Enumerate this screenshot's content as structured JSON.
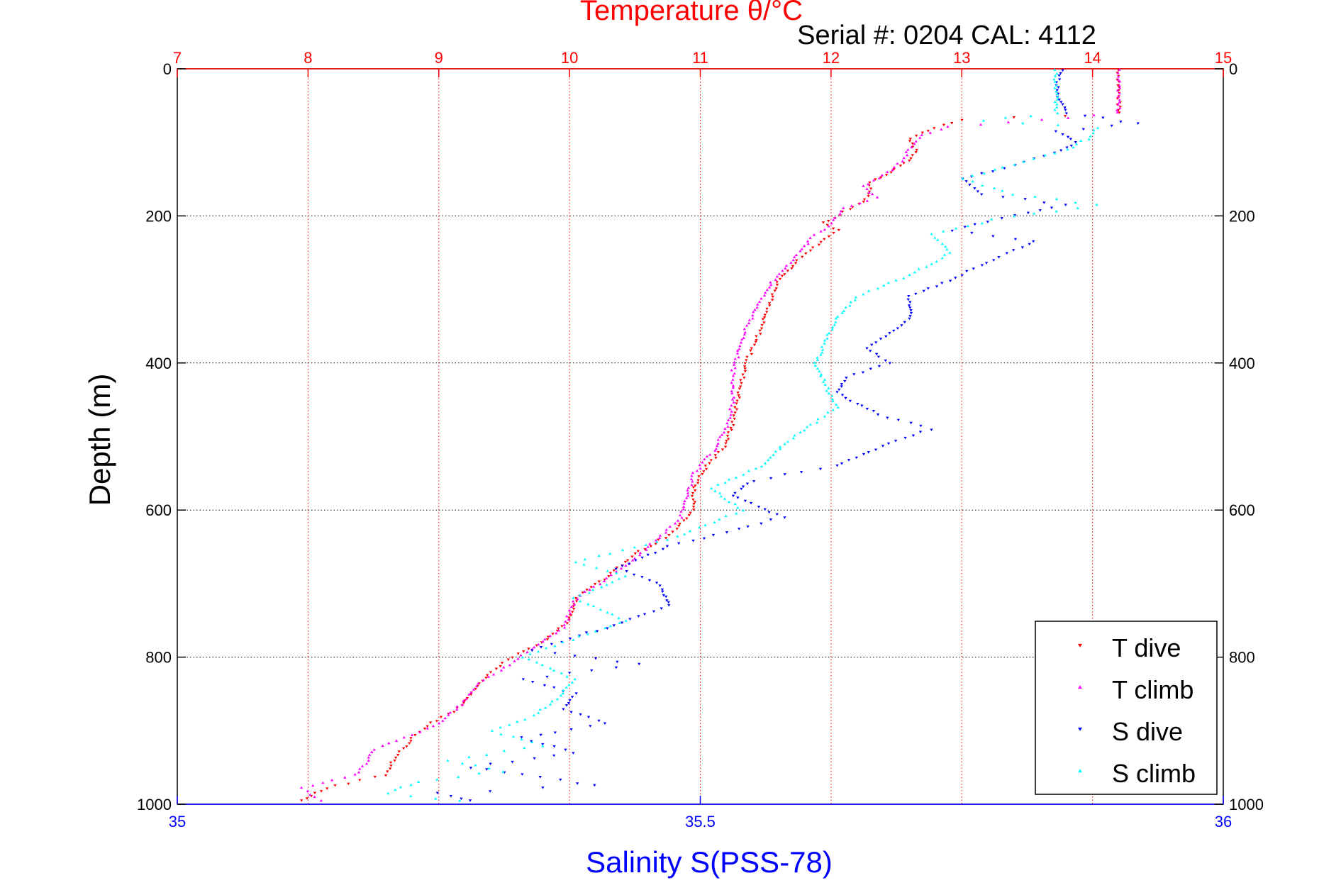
{
  "chart_data": {
    "type": "scatter",
    "title": "Temperature θ/°C",
    "subtitle": "Serial #: 0204  CAL: 4112",
    "ylabel": "Depth (m)",
    "xlabel": "Salinity S(PSS-78)",
    "y_axis": {
      "label": "Depth (m)",
      "range": [
        0,
        1000
      ],
      "reversed": true,
      "ticks": [
        "0",
        "200",
        "400",
        "600",
        "800",
        "1000"
      ],
      "tick_values": [
        0,
        200,
        400,
        600,
        800,
        1000
      ]
    },
    "x_top_axis": {
      "label": "Temperature θ/°C",
      "range": [
        7,
        15
      ],
      "ticks": [
        "7",
        "8",
        "9",
        "10",
        "11",
        "12",
        "13",
        "14",
        "15"
      ],
      "tick_values": [
        7,
        8,
        9,
        10,
        11,
        12,
        13,
        14,
        15
      ],
      "color": "#ff0000",
      "grid": true
    },
    "x_bottom_axis": {
      "label": "Salinity S(PSS-78)",
      "range": [
        35,
        36
      ],
      "ticks": [
        "35",
        "35.5",
        "36"
      ],
      "tick_values": [
        35,
        35.5,
        36
      ],
      "color": "#0000ff"
    },
    "horizontal_grid": true,
    "legend": {
      "position": "bottom-right"
    },
    "series": [
      {
        "name": "T dive",
        "axis": "temperature",
        "color": "#ff0000",
        "points": [
          [
            14.2,
            2
          ],
          [
            14.2,
            30
          ],
          [
            14.2,
            60
          ],
          [
            13.0,
            70
          ],
          [
            12.8,
            80
          ],
          [
            12.6,
            95
          ],
          [
            12.65,
            110
          ],
          [
            12.6,
            125
          ],
          [
            12.45,
            140
          ],
          [
            12.3,
            155
          ],
          [
            12.3,
            170
          ],
          [
            12.25,
            180
          ],
          [
            12.1,
            195
          ],
          [
            11.95,
            210
          ],
          [
            12.05,
            220
          ],
          [
            11.9,
            240
          ],
          [
            11.75,
            260
          ],
          [
            11.6,
            290
          ],
          [
            11.55,
            310
          ],
          [
            11.5,
            330
          ],
          [
            11.45,
            360
          ],
          [
            11.4,
            380
          ],
          [
            11.35,
            400
          ],
          [
            11.3,
            440
          ],
          [
            11.25,
            480
          ],
          [
            11.2,
            510
          ],
          [
            11.05,
            540
          ],
          [
            10.95,
            570
          ],
          [
            10.95,
            600
          ],
          [
            10.8,
            630
          ],
          [
            10.5,
            660
          ],
          [
            10.3,
            690
          ],
          [
            10.05,
            720
          ],
          [
            10.0,
            750
          ],
          [
            9.8,
            780
          ],
          [
            9.55,
            800
          ],
          [
            9.4,
            820
          ],
          [
            9.3,
            840
          ],
          [
            9.15,
            870
          ],
          [
            8.95,
            890
          ],
          [
            8.8,
            910
          ],
          [
            8.65,
            940
          ],
          [
            8.6,
            960
          ],
          [
            8.2,
            975
          ],
          [
            8.05,
            985
          ],
          [
            7.95,
            995
          ]
        ]
      },
      {
        "name": "T climb",
        "axis": "temperature",
        "color": "#ff00ff",
        "points": [
          [
            14.2,
            2
          ],
          [
            14.2,
            30
          ],
          [
            14.2,
            60
          ],
          [
            13.6,
            70
          ],
          [
            12.9,
            78
          ],
          [
            12.7,
            90
          ],
          [
            12.6,
            110
          ],
          [
            12.55,
            125
          ],
          [
            12.4,
            145
          ],
          [
            12.25,
            160
          ],
          [
            12.35,
            175
          ],
          [
            12.1,
            190
          ],
          [
            12.0,
            210
          ],
          [
            11.85,
            230
          ],
          [
            11.7,
            260
          ],
          [
            11.55,
            290
          ],
          [
            11.45,
            320
          ],
          [
            11.35,
            350
          ],
          [
            11.3,
            380
          ],
          [
            11.25,
            410
          ],
          [
            11.25,
            450
          ],
          [
            11.2,
            490
          ],
          [
            11.1,
            520
          ],
          [
            10.95,
            550
          ],
          [
            10.9,
            580
          ],
          [
            10.85,
            610
          ],
          [
            10.6,
            650
          ],
          [
            10.4,
            680
          ],
          [
            10.05,
            720
          ],
          [
            9.95,
            760
          ],
          [
            9.7,
            790
          ],
          [
            9.55,
            810
          ],
          [
            9.3,
            835
          ],
          [
            9.2,
            860
          ],
          [
            9.0,
            890
          ],
          [
            8.8,
            905
          ],
          [
            8.5,
            925
          ],
          [
            8.45,
            945
          ],
          [
            8.35,
            960
          ],
          [
            7.95,
            978
          ],
          [
            8.1,
            995
          ]
        ]
      },
      {
        "name": "S dive",
        "axis": "salinity",
        "color": "#0000ff",
        "points": [
          [
            35.845,
            2
          ],
          [
            35.84,
            30
          ],
          [
            35.85,
            60
          ],
          [
            35.92,
            75
          ],
          [
            35.84,
            85
          ],
          [
            35.86,
            100
          ],
          [
            35.84,
            115
          ],
          [
            35.79,
            135
          ],
          [
            35.75,
            150
          ],
          [
            35.77,
            170
          ],
          [
            35.85,
            185
          ],
          [
            35.8,
            200
          ],
          [
            35.74,
            220
          ],
          [
            35.82,
            235
          ],
          [
            35.78,
            260
          ],
          [
            35.75,
            280
          ],
          [
            35.7,
            310
          ],
          [
            35.7,
            340
          ],
          [
            35.68,
            360
          ],
          [
            35.66,
            380
          ],
          [
            35.68,
            400
          ],
          [
            35.64,
            420
          ],
          [
            35.63,
            440
          ],
          [
            35.67,
            470
          ],
          [
            35.72,
            490
          ],
          [
            35.68,
            510
          ],
          [
            35.63,
            540
          ],
          [
            35.55,
            560
          ],
          [
            35.53,
            580
          ],
          [
            35.58,
            610
          ],
          [
            35.47,
            650
          ],
          [
            35.42,
            680
          ],
          [
            35.46,
            700
          ],
          [
            35.47,
            730
          ],
          [
            35.41,
            760
          ],
          [
            35.34,
            790
          ],
          [
            35.44,
            810
          ],
          [
            35.33,
            830
          ],
          [
            35.38,
            850
          ],
          [
            35.37,
            870
          ],
          [
            35.41,
            890
          ],
          [
            35.33,
            910
          ],
          [
            35.38,
            930
          ],
          [
            35.28,
            950
          ],
          [
            35.33,
            960
          ],
          [
            35.4,
            975
          ],
          [
            35.25,
            985
          ],
          [
            35.28,
            995
          ]
        ]
      },
      {
        "name": "S climb",
        "axis": "salinity",
        "color": "#00ffff",
        "points": [
          [
            35.84,
            2
          ],
          [
            35.84,
            30
          ],
          [
            35.84,
            60
          ],
          [
            35.77,
            70
          ],
          [
            35.88,
            80
          ],
          [
            35.87,
            95
          ],
          [
            35.85,
            110
          ],
          [
            35.8,
            130
          ],
          [
            35.75,
            150
          ],
          [
            35.8,
            170
          ],
          [
            35.88,
            185
          ],
          [
            35.78,
            205
          ],
          [
            35.72,
            225
          ],
          [
            35.74,
            250
          ],
          [
            35.7,
            280
          ],
          [
            35.65,
            310
          ],
          [
            35.63,
            340
          ],
          [
            35.62,
            370
          ],
          [
            35.61,
            400
          ],
          [
            35.62,
            430
          ],
          [
            35.63,
            460
          ],
          [
            35.61,
            480
          ],
          [
            35.58,
            510
          ],
          [
            35.56,
            540
          ],
          [
            35.51,
            570
          ],
          [
            35.54,
            600
          ],
          [
            35.47,
            640
          ],
          [
            35.38,
            670
          ],
          [
            35.43,
            690
          ],
          [
            35.38,
            720
          ],
          [
            35.43,
            750
          ],
          [
            35.37,
            780
          ],
          [
            35.33,
            800
          ],
          [
            35.38,
            830
          ],
          [
            35.36,
            860
          ],
          [
            35.34,
            880
          ],
          [
            35.3,
            900
          ],
          [
            35.35,
            920
          ],
          [
            35.26,
            940
          ],
          [
            35.31,
            955
          ],
          [
            35.23,
            970
          ],
          [
            35.2,
            985
          ],
          [
            35.27,
            995
          ]
        ]
      }
    ]
  }
}
